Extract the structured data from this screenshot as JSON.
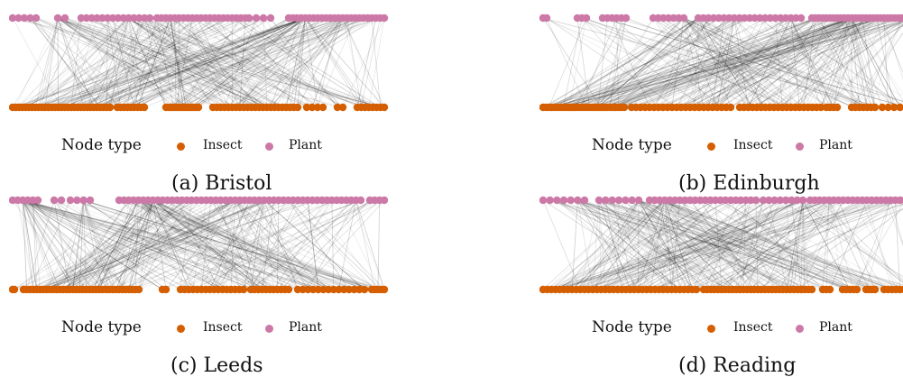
{
  "colors": {
    "insect": "#d55e00",
    "plant": "#cc79a7",
    "edge": "#000000"
  },
  "legend": {
    "title": "Node type",
    "insect": "Insect",
    "plant": "Plant"
  },
  "panels": [
    {
      "caption": "(a) Bristol"
    },
    {
      "caption": "(b) Edinburgh"
    },
    {
      "caption": "(c) Leeds"
    },
    {
      "caption": "(d) Reading"
    }
  ]
}
